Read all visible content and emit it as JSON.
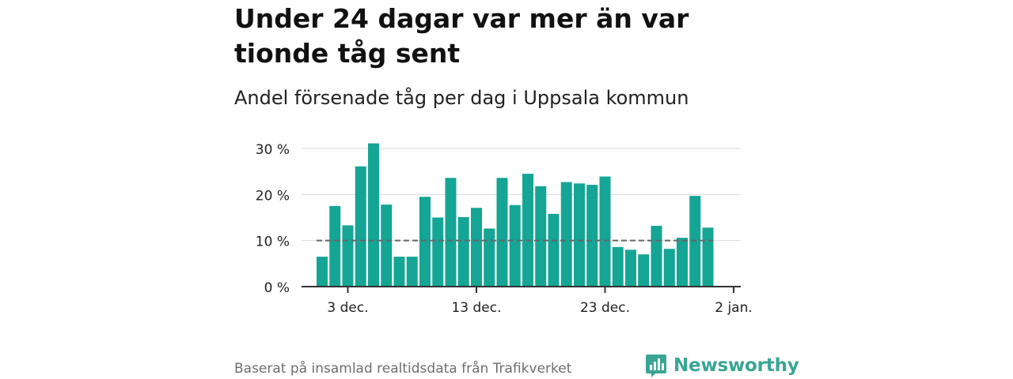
{
  "title": "Under 24 dagar var mer än var tionde tåg sent",
  "subtitle": "Andel försenade tåg per dag i Uppsala kommun",
  "source": "Baserat på insamlad realtidsdata från Trafikverket",
  "brand": {
    "name": "Newsworthy",
    "icon": "newsworthy-logo-icon"
  },
  "colors": {
    "bar": "#14a595",
    "reference": "#666666",
    "grid": "#d9d9d9",
    "axis": "#333333"
  },
  "chart_data": {
    "type": "bar",
    "x_start": "1 dec.",
    "values": [
      6.5,
      17.5,
      13.3,
      26.1,
      31.1,
      17.8,
      6.5,
      6.5,
      19.5,
      15.0,
      23.6,
      15.1,
      17.1,
      12.6,
      23.6,
      17.7,
      24.5,
      21.8,
      15.8,
      22.7,
      22.4,
      22.1,
      23.9,
      8.6,
      8.0,
      7.0,
      13.2,
      8.2,
      10.6,
      19.7,
      12.8
    ],
    "reference_line": 10,
    "xticks": [
      {
        "label": "3 dec.",
        "index": 2
      },
      {
        "label": "13 dec.",
        "index": 12
      },
      {
        "label": "23 dec.",
        "index": 22
      },
      {
        "label": "2 jan.",
        "index": 32
      }
    ],
    "yticks": [
      {
        "label": "0 %",
        "value": 0
      },
      {
        "label": "10 %",
        "value": 10
      },
      {
        "label": "20 %",
        "value": 20
      },
      {
        "label": "30 %",
        "value": 30
      }
    ],
    "ylim": [
      0,
      30
    ],
    "xlabel": "",
    "ylabel": "",
    "grid": true
  }
}
